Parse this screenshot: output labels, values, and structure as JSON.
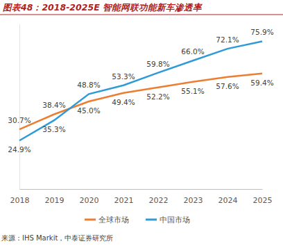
{
  "chart_data": {
    "type": "line",
    "title": "图表48：2018-2025E 智能网联功能新车渗透率",
    "source": "来源：IHS Markit，中泰证券研究所",
    "categories": [
      "2018",
      "2019",
      "2020",
      "2021",
      "2022",
      "2023",
      "2024",
      "2025"
    ],
    "series": [
      {
        "name": "全球市场",
        "color": "#ED7D31",
        "values": [
          30.7,
          38.4,
          45.0,
          49.4,
          52.2,
          55.1,
          57.6,
          59.4
        ],
        "value_labels": [
          "30.7%",
          "38.4%",
          "45.0%",
          "49.4%",
          "52.2%",
          "55.1%",
          "57.6%",
          "59.4%"
        ]
      },
      {
        "name": "中国市场",
        "color": "#2E9BD6",
        "values": [
          24.9,
          35.3,
          48.8,
          53.3,
          59.8,
          66.0,
          72.1,
          75.9
        ],
        "value_labels": [
          "24.9%",
          "35.3%",
          "48.8%",
          "53.3%",
          "59.8%",
          "66.0%",
          "72.1%",
          "75.9%"
        ]
      }
    ],
    "ylim": [
      0,
      85
    ],
    "yticks": [],
    "tick_labels": "x",
    "data_labels": true,
    "legend": "bottom",
    "grid": false
  }
}
